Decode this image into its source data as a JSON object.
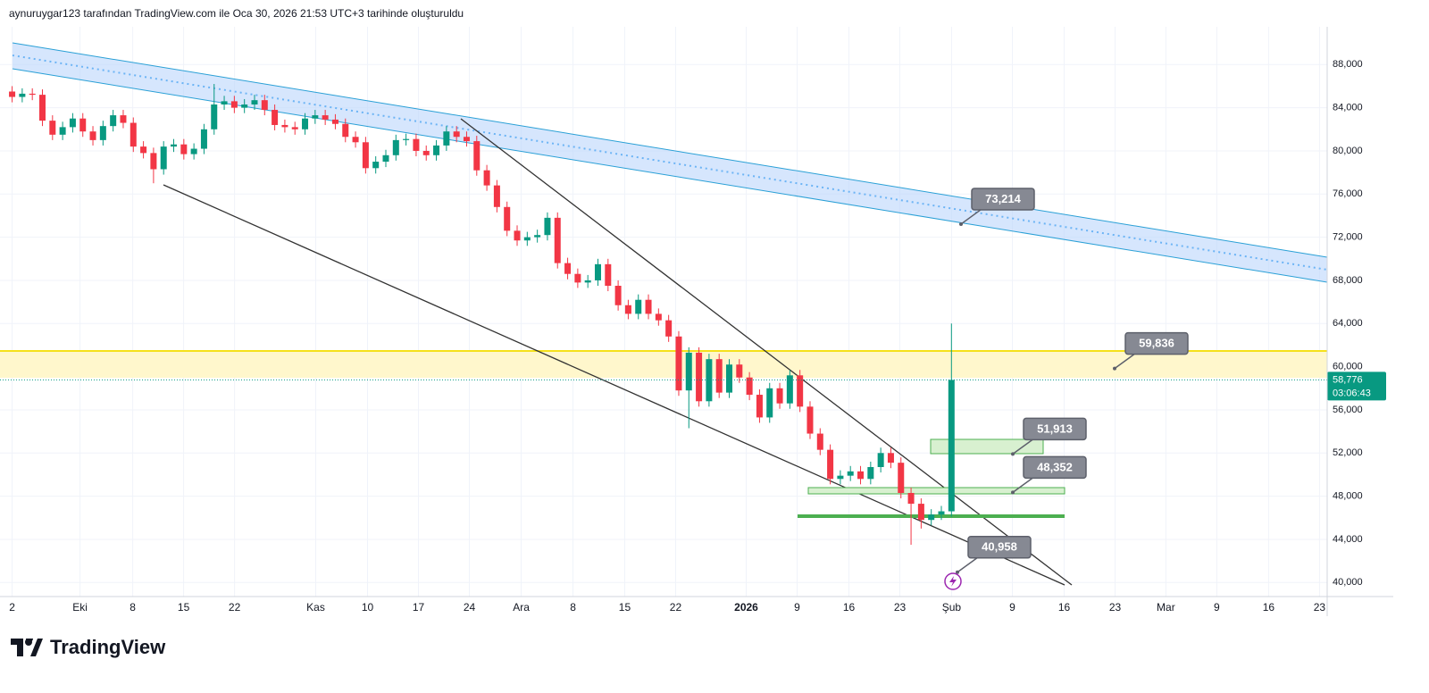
{
  "header": "aynuruygar123 tarafından TradingView.com ile Oca 30, 2026 21:53 UTC+3 tarihinde oluşturuldu",
  "brand": "TradingView",
  "chart_data": {
    "type": "candlestick",
    "open": [
      85500,
      85000,
      85300,
      85200,
      82800,
      81500,
      82200,
      83000,
      81800,
      81000,
      82300,
      83300,
      82600,
      80400,
      79800,
      78300,
      80400,
      80600,
      79700,
      80200,
      82000,
      84300,
      84600,
      84000,
      84300,
      84700,
      83800,
      82400,
      82200,
      82000,
      83000,
      83300,
      82900,
      82500,
      81300,
      80800,
      78400,
      79000,
      79600,
      81000,
      81100,
      80000,
      79600,
      80500,
      81800,
      81300,
      80900,
      78200,
      76800,
      74800,
      72600,
      71700,
      72000,
      72200,
      73800,
      69600,
      68600,
      67800,
      68000,
      69500,
      67500,
      65700,
      64900,
      66200,
      64900,
      64300,
      62800,
      57800,
      61300,
      56800,
      60700,
      57600,
      60200,
      59000,
      57400,
      55300,
      58000,
      56600,
      59200,
      56300,
      53800,
      52300,
      49600,
      49900,
      50300,
      49600,
      50700,
      52000,
      51100,
      48300,
      47300,
      45800,
      46300,
      46600
    ],
    "high": [
      86000,
      85800,
      85800,
      85700,
      83300,
      82700,
      83500,
      83500,
      82300,
      82800,
      83800,
      83800,
      83100,
      80900,
      80300,
      80900,
      81100,
      81100,
      80700,
      82500,
      86200,
      85100,
      85100,
      84800,
      85200,
      85200,
      84300,
      82900,
      82700,
      83500,
      83800,
      83800,
      83400,
      83000,
      81800,
      81300,
      79500,
      80100,
      81500,
      81600,
      81600,
      80500,
      81000,
      82300,
      82300,
      81800,
      81400,
      78700,
      77300,
      75300,
      73100,
      72500,
      72700,
      74300,
      74300,
      70100,
      69100,
      68500,
      70000,
      70000,
      68000,
      66200,
      66700,
      66700,
      65400,
      64800,
      63300,
      61800,
      61800,
      61200,
      61200,
      60700,
      60700,
      59500,
      57900,
      58500,
      58500,
      59700,
      59700,
      56800,
      54300,
      52800,
      50400,
      50800,
      50800,
      51200,
      52500,
      52500,
      51600,
      48800,
      47800,
      46800,
      47100,
      64000
    ],
    "low": [
      84500,
      84500,
      84700,
      82300,
      81000,
      81000,
      81700,
      81300,
      80500,
      80500,
      81800,
      82100,
      79900,
      79300,
      77000,
      77800,
      79900,
      79200,
      79200,
      79700,
      81500,
      83800,
      83500,
      83500,
      83800,
      83300,
      81900,
      81700,
      81500,
      81500,
      82500,
      82400,
      82000,
      80800,
      80300,
      77900,
      77900,
      78500,
      79100,
      80500,
      79500,
      79100,
      79100,
      80000,
      80800,
      80400,
      77700,
      76300,
      74300,
      72100,
      71200,
      71200,
      71500,
      71700,
      69100,
      68100,
      67300,
      67300,
      67500,
      67000,
      65200,
      64400,
      64400,
      64400,
      63800,
      62300,
      57300,
      54300,
      56300,
      56300,
      57100,
      57100,
      58500,
      56900,
      54800,
      54800,
      56100,
      56100,
      55800,
      53300,
      51800,
      49100,
      49100,
      49400,
      49100,
      49100,
      50200,
      50600,
      47800,
      43500,
      45000,
      45300,
      45800,
      46100
    ],
    "close": [
      85000,
      85300,
      85200,
      82800,
      81500,
      82200,
      83000,
      81800,
      81000,
      82300,
      83300,
      82600,
      80400,
      79800,
      78300,
      80400,
      80600,
      79700,
      80200,
      82000,
      84300,
      84600,
      84000,
      84300,
      84700,
      83800,
      82400,
      82200,
      82000,
      83000,
      83300,
      82900,
      82500,
      81300,
      80800,
      78400,
      79000,
      79600,
      81000,
      81100,
      80000,
      79600,
      80500,
      81800,
      81300,
      80900,
      78200,
      76800,
      74800,
      72600,
      71700,
      72000,
      72200,
      73800,
      69600,
      68600,
      67800,
      68000,
      69500,
      67500,
      65700,
      64900,
      66200,
      64900,
      64300,
      62800,
      57800,
      61300,
      56800,
      60700,
      57600,
      60200,
      59000,
      57400,
      55300,
      58000,
      56600,
      59200,
      56300,
      53800,
      52300,
      49600,
      49900,
      50300,
      49600,
      50700,
      52000,
      51100,
      48300,
      47300,
      45800,
      46300,
      46600,
      58776
    ],
    "up_color": "#089981",
    "down_color": "#f23645",
    "ylim": [
      38700,
      91500
    ],
    "yticks": [
      {
        "value": 40000,
        "label": "40,000"
      },
      {
        "value": 44000,
        "label": "44,000"
      },
      {
        "value": 48000,
        "label": "48,000"
      },
      {
        "value": 52000,
        "label": "52,000"
      },
      {
        "value": 56000,
        "label": "56,000"
      },
      {
        "value": 60000,
        "label": "60,000"
      },
      {
        "value": 64000,
        "label": "64,000"
      },
      {
        "value": 68000,
        "label": "68,000"
      },
      {
        "value": 72000,
        "label": "72,000"
      },
      {
        "value": 76000,
        "label": "76,000"
      },
      {
        "value": 80000,
        "label": "80,000"
      },
      {
        "value": 84000,
        "label": "84,000"
      },
      {
        "value": 88000,
        "label": "88,000"
      }
    ],
    "xlim": [
      -1.2,
      130.2
    ],
    "xticks": [
      {
        "value": 0,
        "label": "2"
      },
      {
        "value": 6.72,
        "label": "Eki"
      },
      {
        "value": 11.94,
        "label": "8"
      },
      {
        "value": 16.98,
        "label": "15"
      },
      {
        "value": 22.02,
        "label": "22"
      },
      {
        "value": 30.06,
        "label": "Kas"
      },
      {
        "value": 35.19,
        "label": "10"
      },
      {
        "value": 40.23,
        "label": "17"
      },
      {
        "value": 45.27,
        "label": "24"
      },
      {
        "value": 50.4,
        "label": "Ara"
      },
      {
        "value": 55.53,
        "label": "8"
      },
      {
        "value": 60.65,
        "label": "15"
      },
      {
        "value": 65.69,
        "label": "22"
      },
      {
        "value": 72.68,
        "label": "2026"
      },
      {
        "value": 77.72,
        "label": "9"
      },
      {
        "value": 82.85,
        "label": "16"
      },
      {
        "value": 87.89,
        "label": "23"
      },
      {
        "value": 93.01,
        "label": "Şub"
      },
      {
        "value": 99.03,
        "label": "9"
      },
      {
        "value": 104.16,
        "label": "16"
      },
      {
        "value": 109.2,
        "label": "23"
      },
      {
        "value": 114.23,
        "label": "Mar"
      },
      {
        "value": 119.27,
        "label": "9"
      },
      {
        "value": 124.4,
        "label": "16"
      },
      {
        "value": 129.44,
        "label": "23"
      }
    ],
    "grid": true,
    "annotations": [
      {
        "value": 73214,
        "label": "73,214"
      },
      {
        "value": 51913,
        "label": "51,913"
      },
      {
        "value": 48352,
        "label": "48,352"
      },
      {
        "value": 40958,
        "label": "40,958"
      },
      {
        "value": 59836,
        "label": "59,836"
      }
    ],
    "last_price": {
      "value": 58776,
      "label": "58,776"
    },
    "countdown": "03:06:43"
  }
}
